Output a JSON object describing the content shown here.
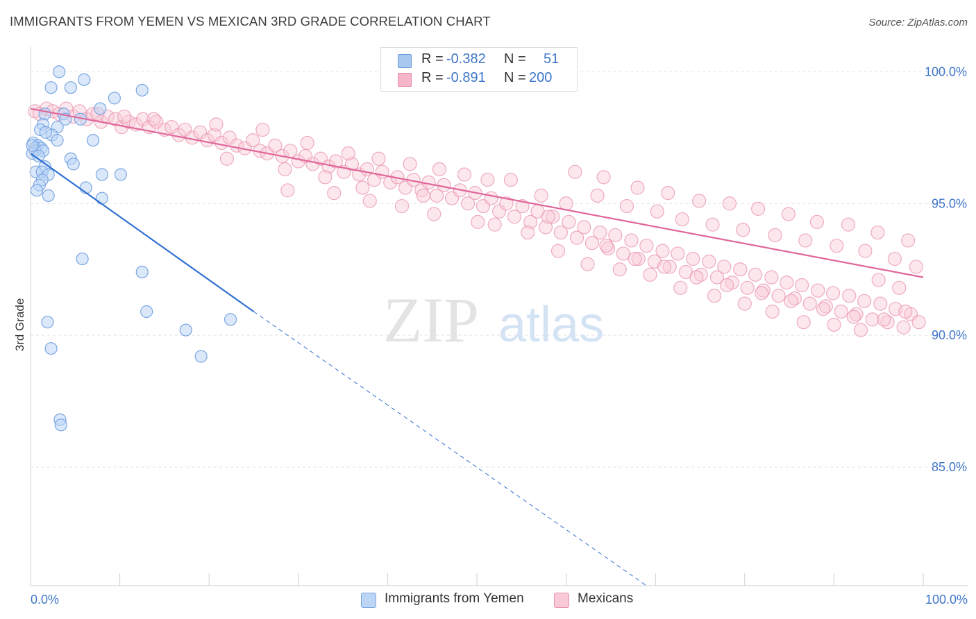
{
  "title": "IMMIGRANTS FROM YEMEN VS MEXICAN 3RD GRADE CORRELATION CHART",
  "source": "Source: ZipAtlas.com",
  "watermark": {
    "zip": "ZIP",
    "atlas": "atlas"
  },
  "legend": {
    "rows": [
      {
        "r_label": "R =",
        "r_value": "-0.382",
        "n_label": "N =",
        "n_value": "51",
        "color": "#a8c8f0",
        "border": "#6a9fe0"
      },
      {
        "r_label": "R =",
        "r_value": "-0.891",
        "n_label": "N =",
        "n_value": "200",
        "color": "#f7b6c8",
        "border": "#e887a7"
      }
    ]
  },
  "bottom_legend": [
    {
      "label": "Immigrants from Yemen",
      "color": "#bcd5f5",
      "border": "#7aa6e3"
    },
    {
      "label": "Mexicans",
      "color": "#f9c9d7",
      "border": "#ea92ae"
    }
  ],
  "chart_data": {
    "type": "scatter",
    "title": "IMMIGRANTS FROM YEMEN VS MEXICAN 3RD GRADE CORRELATION CHART",
    "xlabel": "",
    "ylabel": "3rd Grade",
    "xlim": [
      0,
      100
    ],
    "ylim": [
      80.5,
      100.8
    ],
    "x_tick_labels": [
      "0.0%",
      "100.0%"
    ],
    "y_ticks": [
      85,
      90,
      95,
      100
    ],
    "y_tick_labels": [
      "85.0%",
      "90.0%",
      "95.0%",
      "100.0%"
    ],
    "grid": true,
    "series": [
      {
        "name": "Immigrants from Yemen",
        "color": "#7aa6e3",
        "fill": "#bcd5f5",
        "trend": {
          "x0": 0,
          "y0": 96.9,
          "x1": 25.0,
          "y1": 90.9,
          "dashed_to_x": 69.0,
          "dashed_to_y": 80.5,
          "color": "#2f6fd1"
        },
        "points": [
          [
            3.2,
            100.0
          ],
          [
            6.0,
            99.7
          ],
          [
            2.3,
            99.4
          ],
          [
            4.5,
            99.4
          ],
          [
            12.5,
            99.3
          ],
          [
            9.4,
            99.0
          ],
          [
            7.8,
            98.6
          ],
          [
            1.6,
            98.4
          ],
          [
            3.7,
            98.4
          ],
          [
            3.9,
            98.2
          ],
          [
            1.4,
            98.0
          ],
          [
            3.0,
            97.9
          ],
          [
            1.1,
            97.8
          ],
          [
            2.4,
            97.6
          ],
          [
            3.0,
            97.4
          ],
          [
            7.0,
            97.4
          ],
          [
            0.3,
            97.3
          ],
          [
            0.8,
            97.2
          ],
          [
            0.5,
            97.1
          ],
          [
            1.2,
            97.1
          ],
          [
            0.5,
            97.0
          ],
          [
            1.4,
            97.0
          ],
          [
            0.2,
            96.9
          ],
          [
            4.5,
            96.7
          ],
          [
            4.8,
            96.5
          ],
          [
            1.6,
            96.4
          ],
          [
            0.6,
            96.2
          ],
          [
            1.3,
            96.2
          ],
          [
            2.0,
            96.1
          ],
          [
            8.0,
            96.1
          ],
          [
            10.1,
            96.1
          ],
          [
            1.3,
            95.9
          ],
          [
            1.0,
            95.7
          ],
          [
            6.2,
            95.6
          ],
          [
            0.7,
            95.5
          ],
          [
            2.0,
            95.3
          ],
          [
            8.0,
            95.2
          ],
          [
            5.8,
            92.9
          ],
          [
            12.5,
            92.4
          ],
          [
            13.0,
            90.9
          ],
          [
            22.4,
            90.6
          ],
          [
            1.9,
            90.5
          ],
          [
            17.4,
            90.2
          ],
          [
            2.3,
            89.5
          ],
          [
            19.1,
            89.2
          ],
          [
            3.3,
            86.8
          ],
          [
            3.4,
            86.6
          ],
          [
            0.2,
            97.2
          ],
          [
            0.9,
            96.8
          ],
          [
            5.6,
            98.2
          ],
          [
            1.7,
            97.7
          ]
        ]
      },
      {
        "name": "Mexicans",
        "color": "#ea92ae",
        "fill": "#f9c9d7",
        "trend": {
          "x0": 0,
          "y0": 98.6,
          "x1": 100,
          "y1": 92.2,
          "color": "#e0669a"
        },
        "points": [
          [
            0.5,
            98.5
          ],
          [
            1.0,
            98.4
          ],
          [
            1.8,
            98.6
          ],
          [
            2.5,
            98.5
          ],
          [
            3.2,
            98.4
          ],
          [
            4.0,
            98.6
          ],
          [
            4.8,
            98.3
          ],
          [
            5.5,
            98.5
          ],
          [
            6.3,
            98.2
          ],
          [
            7.0,
            98.4
          ],
          [
            7.9,
            98.1
          ],
          [
            8.6,
            98.3
          ],
          [
            9.5,
            98.2
          ],
          [
            10.2,
            97.9
          ],
          [
            11.0,
            98.1
          ],
          [
            11.8,
            98.0
          ],
          [
            12.6,
            98.2
          ],
          [
            13.3,
            97.9
          ],
          [
            14.1,
            98.1
          ],
          [
            15.0,
            97.8
          ],
          [
            15.8,
            97.9
          ],
          [
            16.6,
            97.6
          ],
          [
            17.3,
            97.8
          ],
          [
            18.1,
            97.5
          ],
          [
            19.0,
            97.7
          ],
          [
            19.8,
            97.4
          ],
          [
            20.6,
            97.6
          ],
          [
            21.4,
            97.3
          ],
          [
            22.3,
            97.5
          ],
          [
            23.1,
            97.2
          ],
          [
            24.0,
            97.1
          ],
          [
            24.9,
            97.4
          ],
          [
            25.7,
            97.0
          ],
          [
            26.5,
            96.9
          ],
          [
            27.4,
            97.2
          ],
          [
            28.2,
            96.8
          ],
          [
            29.1,
            97.0
          ],
          [
            30.0,
            96.6
          ],
          [
            30.8,
            96.8
          ],
          [
            31.6,
            96.5
          ],
          [
            32.5,
            96.7
          ],
          [
            33.4,
            96.4
          ],
          [
            34.2,
            96.6
          ],
          [
            35.1,
            96.2
          ],
          [
            36.0,
            96.5
          ],
          [
            36.8,
            96.1
          ],
          [
            37.7,
            96.3
          ],
          [
            38.5,
            95.9
          ],
          [
            39.4,
            96.2
          ],
          [
            40.3,
            95.8
          ],
          [
            41.1,
            96.0
          ],
          [
            42.0,
            95.6
          ],
          [
            42.9,
            95.9
          ],
          [
            43.8,
            95.5
          ],
          [
            44.6,
            95.8
          ],
          [
            45.5,
            95.3
          ],
          [
            46.3,
            95.7
          ],
          [
            47.2,
            95.2
          ],
          [
            48.1,
            95.5
          ],
          [
            49.0,
            95.0
          ],
          [
            49.8,
            95.4
          ],
          [
            50.7,
            94.9
          ],
          [
            51.6,
            95.2
          ],
          [
            52.5,
            94.7
          ],
          [
            53.3,
            95.0
          ],
          [
            54.2,
            94.5
          ],
          [
            55.1,
            94.9
          ],
          [
            56.0,
            94.3
          ],
          [
            56.8,
            94.7
          ],
          [
            57.7,
            94.1
          ],
          [
            58.5,
            94.5
          ],
          [
            59.4,
            93.9
          ],
          [
            60.3,
            94.3
          ],
          [
            61.2,
            93.7
          ],
          [
            62.0,
            94.1
          ],
          [
            62.9,
            93.5
          ],
          [
            63.8,
            93.9
          ],
          [
            64.7,
            93.3
          ],
          [
            65.5,
            93.8
          ],
          [
            66.4,
            93.1
          ],
          [
            67.3,
            93.6
          ],
          [
            68.1,
            92.9
          ],
          [
            69.0,
            93.4
          ],
          [
            69.9,
            92.8
          ],
          [
            70.8,
            93.2
          ],
          [
            71.6,
            92.6
          ],
          [
            72.5,
            93.1
          ],
          [
            73.4,
            92.4
          ],
          [
            74.2,
            92.9
          ],
          [
            75.1,
            92.3
          ],
          [
            76.0,
            92.8
          ],
          [
            76.9,
            92.2
          ],
          [
            77.7,
            92.6
          ],
          [
            78.6,
            92.0
          ],
          [
            79.5,
            92.5
          ],
          [
            80.3,
            91.8
          ],
          [
            81.2,
            92.3
          ],
          [
            82.1,
            91.7
          ],
          [
            83.0,
            92.2
          ],
          [
            83.8,
            91.5
          ],
          [
            84.7,
            92.0
          ],
          [
            85.6,
            91.4
          ],
          [
            86.4,
            91.9
          ],
          [
            87.3,
            91.2
          ],
          [
            88.2,
            91.7
          ],
          [
            89.1,
            91.1
          ],
          [
            89.9,
            91.6
          ],
          [
            90.8,
            90.9
          ],
          [
            91.7,
            91.5
          ],
          [
            92.5,
            90.8
          ],
          [
            93.4,
            91.3
          ],
          [
            94.3,
            90.6
          ],
          [
            95.2,
            91.2
          ],
          [
            96.0,
            90.5
          ],
          [
            96.9,
            91.0
          ],
          [
            97.8,
            90.3
          ],
          [
            98.6,
            90.8
          ],
          [
            99.5,
            90.5
          ],
          [
            7.5,
            98.4
          ],
          [
            10.5,
            98.3
          ],
          [
            13.8,
            98.2
          ],
          [
            20.8,
            98.0
          ],
          [
            26.0,
            97.8
          ],
          [
            31.0,
            97.3
          ],
          [
            35.6,
            96.9
          ],
          [
            39.0,
            96.7
          ],
          [
            42.5,
            96.5
          ],
          [
            45.8,
            96.3
          ],
          [
            48.6,
            96.1
          ],
          [
            51.2,
            95.9
          ],
          [
            53.8,
            95.9
          ],
          [
            57.2,
            95.3
          ],
          [
            60.0,
            95.0
          ],
          [
            63.5,
            95.3
          ],
          [
            66.8,
            94.9
          ],
          [
            70.2,
            94.7
          ],
          [
            73.0,
            94.4
          ],
          [
            76.4,
            94.2
          ],
          [
            79.8,
            94.0
          ],
          [
            83.4,
            93.8
          ],
          [
            86.8,
            93.6
          ],
          [
            90.3,
            93.4
          ],
          [
            93.5,
            93.2
          ],
          [
            96.8,
            92.9
          ],
          [
            99.2,
            92.6
          ],
          [
            61.0,
            96.2
          ],
          [
            64.2,
            96.0
          ],
          [
            68.0,
            95.6
          ],
          [
            71.4,
            95.4
          ],
          [
            74.9,
            95.1
          ],
          [
            78.3,
            95.0
          ],
          [
            81.5,
            94.8
          ],
          [
            84.9,
            94.6
          ],
          [
            88.1,
            94.3
          ],
          [
            91.6,
            94.2
          ],
          [
            94.9,
            93.9
          ],
          [
            98.3,
            93.6
          ],
          [
            22.0,
            96.7
          ],
          [
            28.5,
            96.3
          ],
          [
            33.0,
            96.0
          ],
          [
            37.2,
            95.6
          ],
          [
            44.0,
            95.3
          ],
          [
            50.1,
            94.3
          ],
          [
            55.7,
            93.9
          ],
          [
            59.1,
            93.2
          ],
          [
            62.4,
            92.7
          ],
          [
            66.0,
            92.5
          ],
          [
            69.4,
            92.3
          ],
          [
            72.8,
            91.8
          ],
          [
            76.6,
            91.5
          ],
          [
            80.0,
            91.2
          ],
          [
            83.1,
            90.9
          ],
          [
            86.6,
            90.5
          ],
          [
            90.0,
            90.4
          ],
          [
            93.0,
            90.2
          ],
          [
            95.6,
            90.6
          ],
          [
            98.0,
            90.9
          ],
          [
            28.8,
            95.5
          ],
          [
            34.0,
            95.4
          ],
          [
            38.0,
            95.1
          ],
          [
            41.6,
            94.9
          ],
          [
            45.2,
            94.6
          ],
          [
            52.0,
            94.2
          ],
          [
            58.0,
            94.5
          ],
          [
            64.5,
            93.4
          ],
          [
            67.7,
            92.9
          ],
          [
            71.0,
            92.6
          ],
          [
            74.6,
            92.2
          ],
          [
            78.0,
            91.9
          ],
          [
            81.9,
            91.6
          ],
          [
            85.2,
            91.3
          ],
          [
            88.8,
            91.0
          ],
          [
            92.2,
            90.7
          ],
          [
            95.0,
            92.1
          ],
          [
            97.3,
            91.8
          ]
        ]
      }
    ]
  }
}
